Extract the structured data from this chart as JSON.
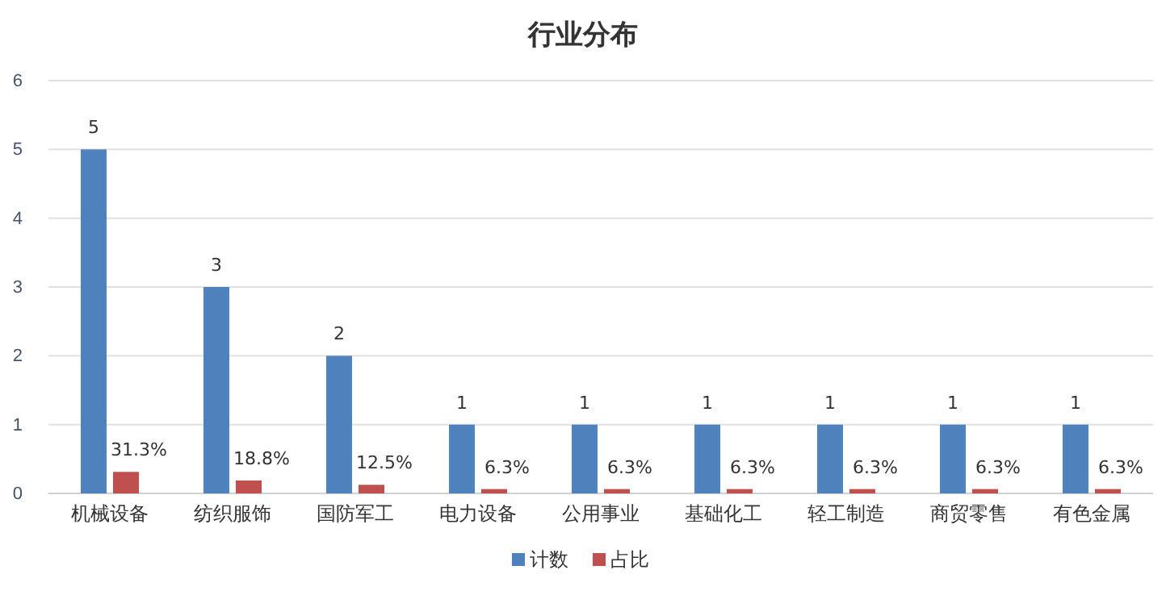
{
  "chart_data": {
    "type": "bar",
    "title": "行业分布",
    "categories": [
      "机械设备",
      "纺织服饰",
      "国防军工",
      "电力设备",
      "公用事业",
      "基础化工",
      "轻工制造",
      "商贸零售",
      "有色金属"
    ],
    "series": [
      {
        "name": "计数",
        "color": "#4f81bd",
        "values": [
          5,
          3,
          2,
          1,
          1,
          1,
          1,
          1,
          1
        ],
        "value_labels": [
          "5",
          "3",
          "2",
          "1",
          "1",
          "1",
          "1",
          "1",
          "1"
        ]
      },
      {
        "name": "占比",
        "color": "#c0504d",
        "values": [
          0.313,
          0.188,
          0.125,
          0.063,
          0.063,
          0.063,
          0.063,
          0.063,
          0.063
        ],
        "value_labels": [
          "31.3%",
          "18.8%",
          "12.5%",
          "6.3%",
          "6.3%",
          "6.3%",
          "6.3%",
          "6.3%",
          "6.3%"
        ]
      }
    ],
    "ylim": [
      0,
      6
    ],
    "yticks": [
      0,
      1,
      2,
      3,
      4,
      5,
      6
    ],
    "grid": "y",
    "legend": "bottom"
  }
}
